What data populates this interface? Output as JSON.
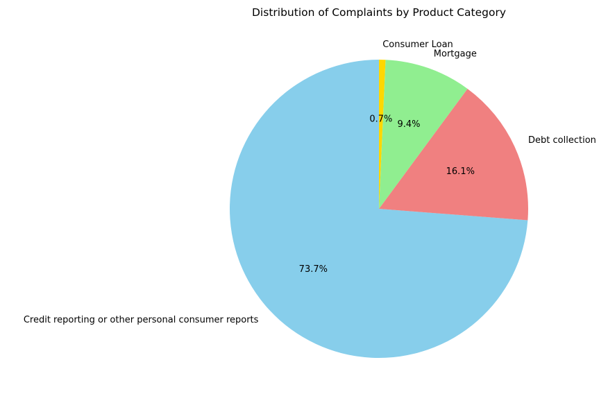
{
  "chart_data": {
    "type": "pie",
    "title": "Distribution of Complaints by Product Category",
    "start_angle_deg": 90,
    "direction": "counterclockwise",
    "slices": [
      {
        "label": "Credit reporting or other personal consumer reports",
        "value": 73.7,
        "pct_label": "73.7%",
        "color": "#87CEEB"
      },
      {
        "label": "Debt collection",
        "value": 16.1,
        "pct_label": "16.1%",
        "color": "#F08080"
      },
      {
        "label": "Mortgage",
        "value": 9.4,
        "pct_label": "9.4%",
        "color": "#90EE90"
      },
      {
        "label": "Consumer Loan",
        "value": 0.7,
        "pct_label": "0.7%",
        "color": "#FFD700"
      }
    ]
  }
}
